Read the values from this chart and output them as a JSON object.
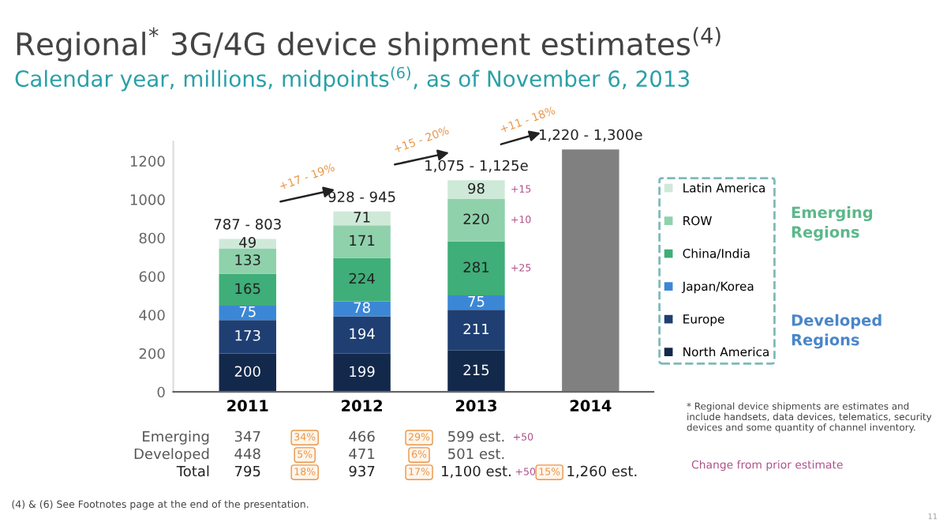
{
  "chart_data": {
    "type": "bar",
    "stacked": true,
    "title": "Regional$^{*}$ 3G/4G device shipment estimates$^{(4)}$",
    "subtitle": "Calendar year, millions, midpoints$^{(6)}$, as of November 6, 2013",
    "categories": [
      "2011",
      "2012",
      "2013",
      "2014"
    ],
    "ylim": [
      0,
      1300
    ],
    "yticks": [
      0,
      200,
      400,
      600,
      800,
      1000,
      1200
    ],
    "grid": false,
    "legend": "right",
    "series": [
      {
        "name": "North America",
        "color": "#13294b",
        "values": [
          200,
          199,
          215,
          null
        ],
        "value_labels": [
          "200",
          "199",
          "215",
          null
        ]
      },
      {
        "name": "Europe",
        "color": "#1f3f73",
        "values": [
          173,
          194,
          211,
          null
        ],
        "value_labels": [
          "173",
          "194",
          "211",
          null
        ]
      },
      {
        "name": "Japan/Korea",
        "color": "#3b87d6",
        "values": [
          75,
          78,
          75,
          null
        ],
        "value_labels": [
          "75",
          "78",
          "75",
          null
        ]
      },
      {
        "name": "China/India",
        "color": "#3fae78",
        "values": [
          165,
          224,
          281,
          null
        ],
        "value_labels": [
          "165",
          "224",
          "281",
          null
        ]
      },
      {
        "name": "ROW",
        "color": "#8fd1ab",
        "values": [
          133,
          171,
          220,
          null
        ],
        "value_labels": [
          "133",
          "171",
          "220",
          null
        ]
      },
      {
        "name": "Latin America",
        "color": "#cfe9d9",
        "values": [
          49,
          71,
          98,
          null
        ],
        "value_labels": [
          "49",
          "71",
          "98",
          null
        ]
      },
      {
        "color": "#808080",
        "values": [
          null,
          null,
          null,
          1260
        ]
      }
    ],
    "annotations": [
      {
        "text": "787 - 803",
        "x": "2011",
        "y": 795
      },
      {
        "text": "928 - 945",
        "x": "2012",
        "y": 937
      },
      {
        "text": "1,075 - 1,125e",
        "x": "2013",
        "y": 1100
      },
      {
        "text": "1,220 - 1,300e",
        "x": "2014",
        "y": 1260
      },
      "+17 - 19%",
      "+15 - 20%",
      "+11 - 18%",
      "+15",
      "+10",
      "+25",
      "Emerging\nRegions",
      "Developed\nRegions",
      "Emerging",
      "347",
      "34%",
      "466",
      "29%",
      "599 est.",
      "+50",
      "Developed",
      "448",
      "5%",
      "471",
      "6%",
      "501 est.",
      "Total",
      "795",
      "18%",
      "937",
      "17%",
      "1,100 est.",
      "+50",
      "15%",
      "1,260 est.",
      "* Regional device shipments are estimates and include handsets, data devices, telematics, security devices and some quantity of channel inventory.",
      "Change from prior estimate",
      "(4) & (6) See Footnotes page at the end of the presentation.",
      "11"
    ]
  }
}
